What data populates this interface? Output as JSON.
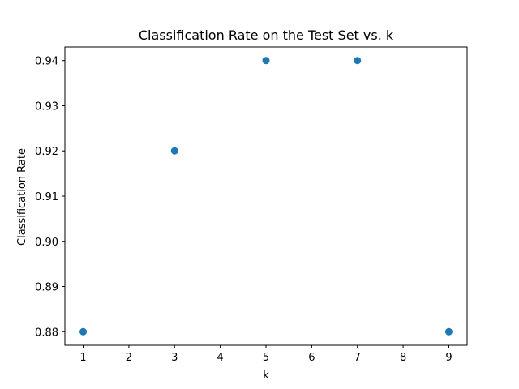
{
  "chart_data": {
    "type": "scatter",
    "title": "Classification Rate on the Test Set vs. k",
    "xlabel": "k",
    "ylabel": "Classification Rate",
    "x": [
      1,
      3,
      5,
      7,
      9
    ],
    "y": [
      0.88,
      0.92,
      0.94,
      0.94,
      0.88
    ],
    "xlim": [
      0.6,
      9.4
    ],
    "ylim": [
      0.877,
      0.943
    ],
    "xticks": [
      1,
      2,
      3,
      4,
      5,
      6,
      7,
      8,
      9
    ],
    "xtick_labels": [
      "1",
      "2",
      "3",
      "4",
      "5",
      "6",
      "7",
      "8",
      "9"
    ],
    "yticks": [
      0.88,
      0.89,
      0.9,
      0.91,
      0.92,
      0.93,
      0.94
    ],
    "ytick_labels": [
      "0.88",
      "0.89",
      "0.90",
      "0.91",
      "0.92",
      "0.93",
      "0.94"
    ],
    "grid": false,
    "marker_color": "#1f77b4"
  }
}
